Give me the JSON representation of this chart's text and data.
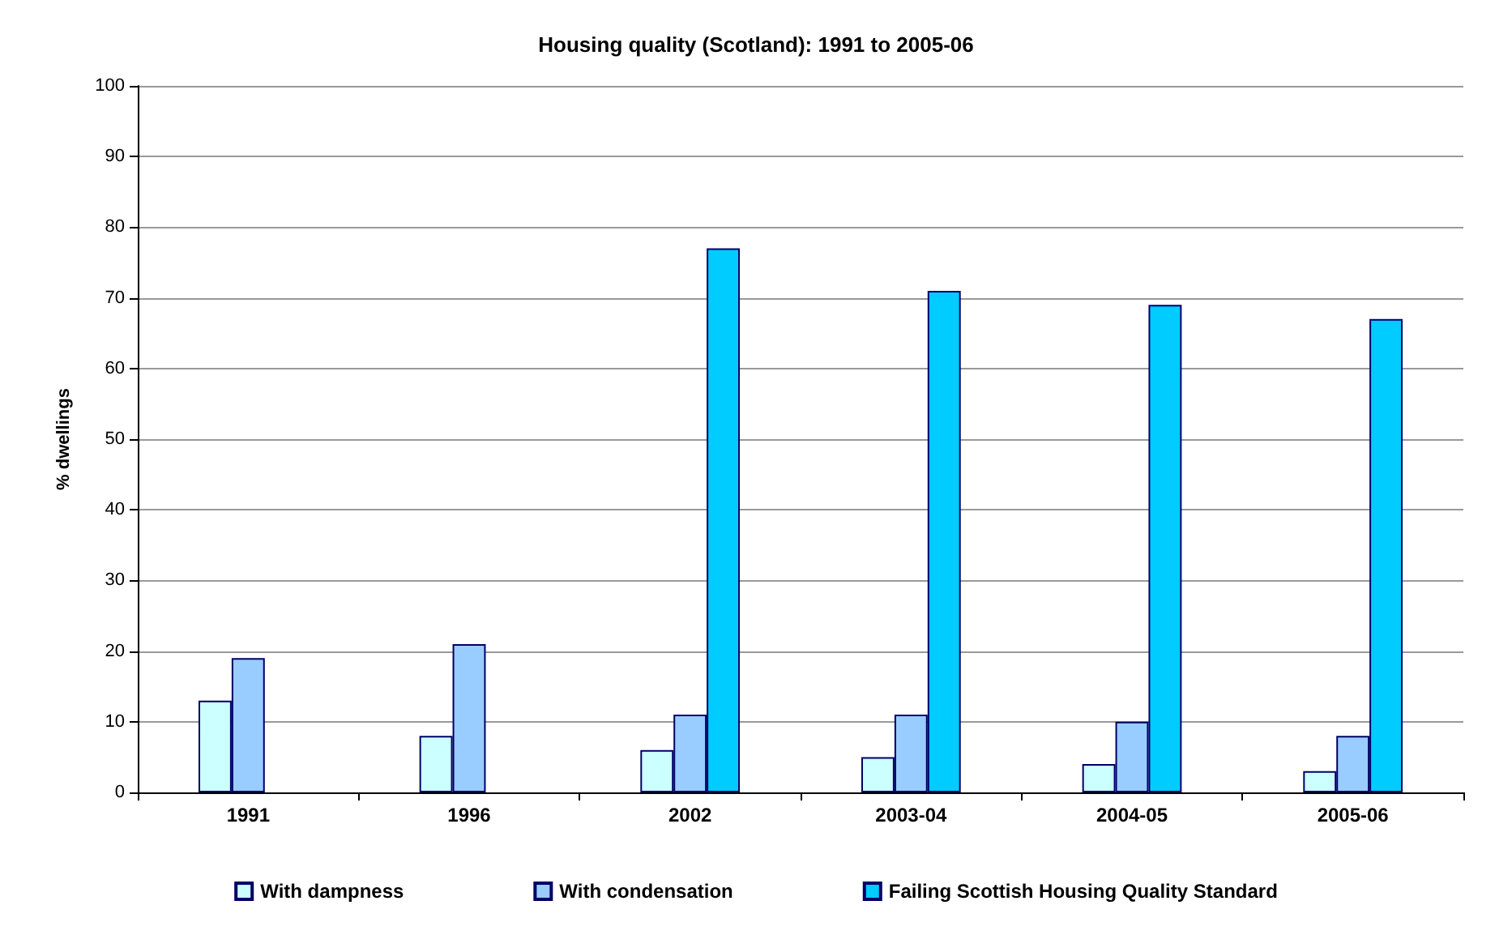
{
  "chart_data": {
    "type": "bar",
    "title": "Housing quality (Scotland): 1991 to 2005-06",
    "ylabel": "% dwellings",
    "categories": [
      "1991",
      "1996",
      "2002",
      "2003-04",
      "2004-05",
      "2005-06"
    ],
    "series": [
      {
        "name": "With dampness",
        "color": "#ccffff",
        "values": [
          13,
          8,
          6,
          5,
          4,
          3
        ]
      },
      {
        "name": "With condensation",
        "color": "#99ccff",
        "values": [
          19,
          21,
          11,
          11,
          10,
          8
        ]
      },
      {
        "name": "Failing Scottish Housing Quality Standard",
        "color": "#00ccff",
        "values": [
          null,
          null,
          77,
          71,
          69,
          67
        ]
      }
    ],
    "ylim": [
      0,
      100
    ],
    "yticks": [
      0,
      10,
      20,
      30,
      40,
      50,
      60,
      70,
      80,
      90,
      100
    ],
    "grid": "y",
    "legend": "bottom"
  }
}
